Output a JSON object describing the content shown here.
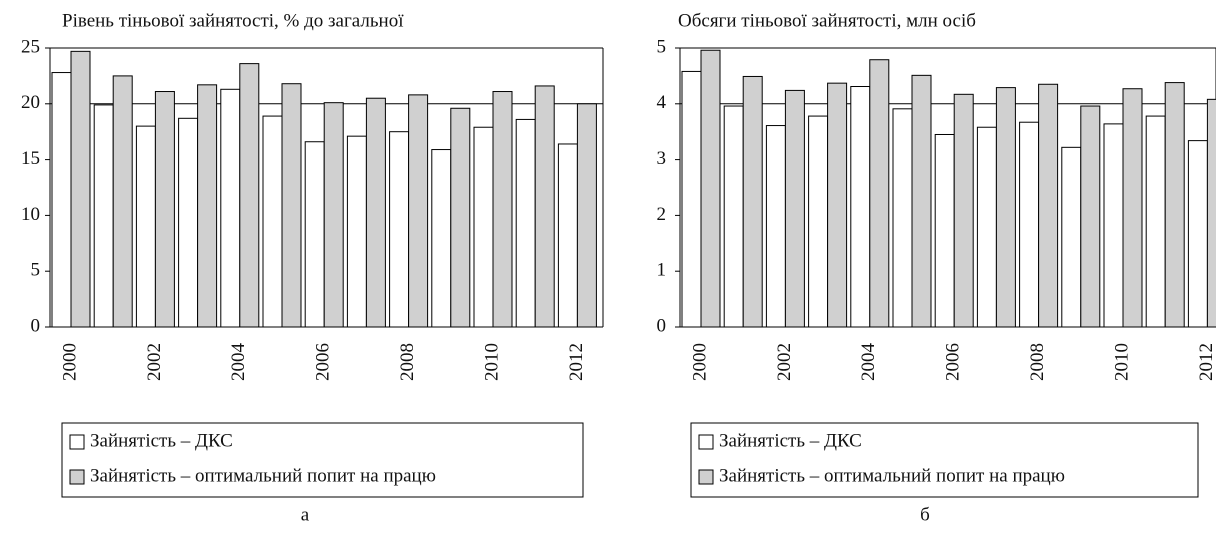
{
  "chart_data": [
    {
      "type": "bar",
      "title": "Рівень тіньової зайнятості, % до загальної",
      "caption": "а",
      "categories": [
        "2000",
        null,
        "2002",
        null,
        "2004",
        null,
        "2006",
        null,
        "2008",
        null,
        "2010",
        null,
        "2012"
      ],
      "series": [
        {
          "name": "Зайнятість – ДКС",
          "color": "#ffffff",
          "values": [
            22.8,
            19.9,
            18.0,
            18.7,
            21.3,
            18.9,
            16.6,
            17.1,
            17.5,
            15.9,
            17.9,
            18.6,
            16.4
          ]
        },
        {
          "name": "Зайнятість – оптимальний попит на працю",
          "color": "#d0d0d0",
          "values": [
            24.7,
            22.5,
            21.1,
            21.7,
            23.6,
            21.8,
            20.1,
            20.5,
            20.8,
            19.6,
            21.1,
            21.6,
            20.0
          ]
        }
      ],
      "ylim": [
        0,
        25
      ],
      "yticks": [
        0,
        5,
        10,
        15,
        20,
        25
      ],
      "hline": 20
    },
    {
      "type": "bar",
      "title": "Обсяги тіньової зайнятості, млн осіб",
      "caption": "б",
      "categories": [
        "2000",
        null,
        "2002",
        null,
        "2004",
        null,
        "2006",
        null,
        "2008",
        null,
        "2010",
        null,
        "2012"
      ],
      "series": [
        {
          "name": "Зайнятість – ДКС",
          "color": "#ffffff",
          "values": [
            4.58,
            3.96,
            3.61,
            3.78,
            4.31,
            3.91,
            3.45,
            3.58,
            3.67,
            3.22,
            3.64,
            3.78,
            3.34
          ]
        },
        {
          "name": "Зайнятість – оптимальний попит на працю",
          "color": "#d0d0d0",
          "values": [
            4.96,
            4.49,
            4.24,
            4.37,
            4.79,
            4.51,
            4.17,
            4.29,
            4.35,
            3.96,
            4.27,
            4.38,
            4.08
          ]
        }
      ],
      "ylim": [
        0,
        5
      ],
      "yticks": [
        0,
        1,
        2,
        3,
        4,
        5
      ],
      "hline": 4
    }
  ]
}
